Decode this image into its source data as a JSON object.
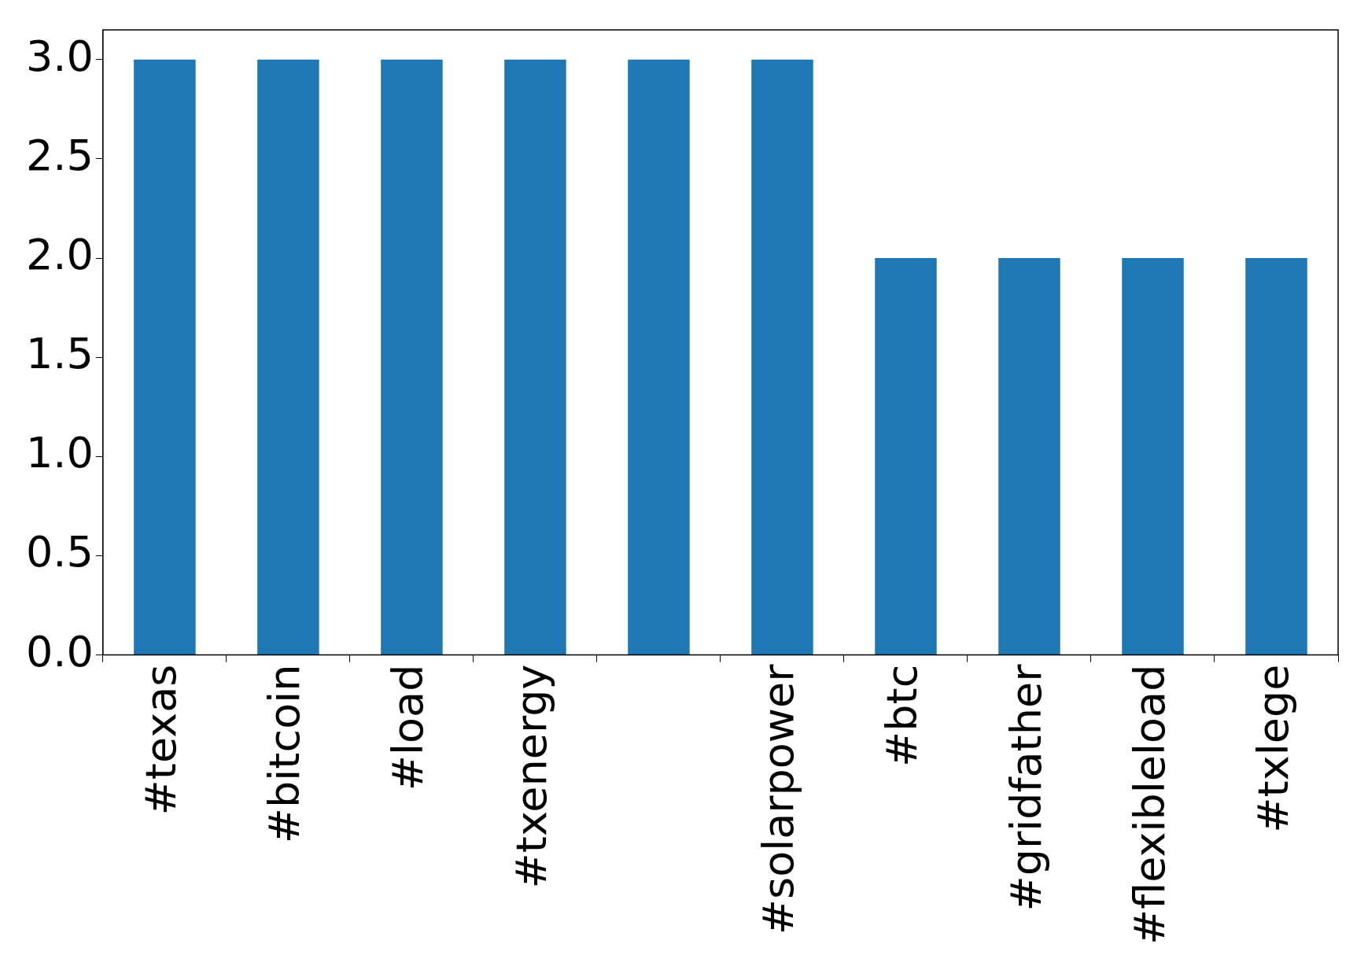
{
  "chart_data": {
    "type": "bar",
    "categories": [
      "#texas",
      "#bitcoin",
      "#load",
      "#txenergy",
      null,
      "#solarpower",
      "#btc",
      "#gridfather",
      "#flexibleload",
      "#txlege"
    ],
    "values": [
      3,
      3,
      3,
      3,
      3,
      3,
      2,
      2,
      2,
      2
    ],
    "color": "#1f77b4",
    "ylim": [
      0,
      3.15
    ],
    "yticks": [
      {
        "value": 0,
        "label": "0.0"
      },
      0.5,
      {
        "value": 1,
        "label": "1.0"
      },
      1.5,
      {
        "value": 2,
        "label": "2.0"
      },
      2.5,
      {
        "value": 3,
        "label": "3.0"
      }
    ],
    "grid": false
  }
}
